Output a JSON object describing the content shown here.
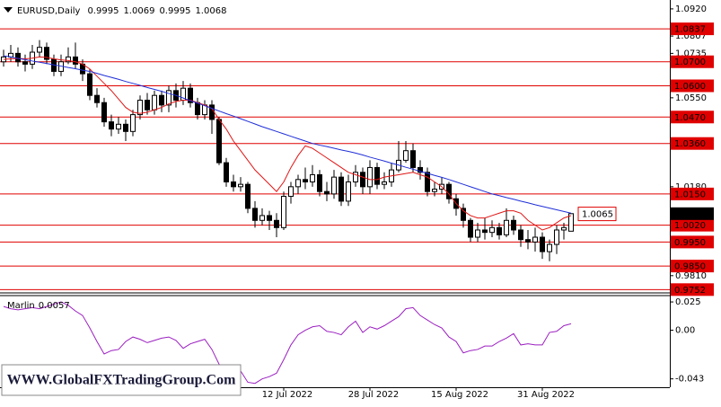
{
  "chart_data": [
    {
      "type": "candlestick",
      "title": "EURUSD,Daily",
      "categories": [
        null,
        null,
        null,
        null,
        null,
        null,
        null,
        null,
        null,
        null,
        null,
        null,
        null,
        null,
        null,
        null,
        null,
        null,
        null,
        null,
        null,
        null,
        null,
        null,
        null,
        null,
        null,
        null,
        null,
        null,
        null,
        null,
        null,
        null,
        null,
        null,
        null,
        null,
        null,
        "12 Jul 2022",
        null,
        null,
        null,
        null,
        null,
        null,
        null,
        null,
        null,
        null,
        null,
        "28 Jul 2022",
        null,
        null,
        null,
        null,
        null,
        null,
        null,
        null,
        null,
        null,
        null,
        "15 Aug 2022",
        null,
        null,
        null,
        null,
        null,
        null,
        null,
        null,
        null,
        null,
        null,
        "31 Aug 2022",
        null,
        null,
        null,
        null
      ],
      "open": [
        1.07,
        1.072,
        1.0735,
        1.07,
        1.069,
        1.074,
        1.076,
        1.071,
        1.066,
        1.07,
        1.072,
        1.069,
        1.065,
        1.056,
        1.053,
        1.045,
        1.042,
        1.044,
        1.041,
        1.048,
        1.054,
        1.05,
        1.056,
        1.052,
        1.058,
        1.054,
        1.059,
        1.053,
        1.048,
        1.052,
        1.046,
        1.028,
        1.02,
        1.018,
        1.019,
        1.009,
        1.004,
        1.006,
        1.004,
        1.001,
        1.014,
        1.018,
        1.021,
        1.02,
        1.023,
        1.016,
        1.015,
        1.022,
        1.012,
        1.02,
        1.024,
        1.018,
        1.026,
        1.019,
        1.02,
        1.025,
        1.029,
        1.033,
        1.026,
        1.024,
        1.016,
        1.017,
        1.019,
        1.013,
        1.009,
        1.004,
        0.997,
        1.0,
        0.999,
        1.001,
        0.998,
        1.004,
        1.0,
        0.996,
        0.995,
        0.997,
        0.991,
        0.994,
        1.0,
        0.9995
      ],
      "high": [
        1.075,
        1.077,
        1.076,
        1.073,
        1.077,
        1.079,
        1.078,
        1.073,
        1.073,
        1.076,
        1.078,
        1.071,
        1.067,
        1.059,
        1.055,
        1.048,
        1.047,
        1.046,
        1.05,
        1.056,
        1.057,
        1.058,
        1.058,
        1.06,
        1.061,
        1.062,
        1.061,
        1.055,
        1.054,
        1.054,
        1.047,
        1.03,
        1.023,
        1.022,
        1.02,
        1.012,
        1.009,
        1.008,
        1.007,
        1.016,
        1.02,
        1.023,
        1.026,
        1.027,
        1.025,
        1.02,
        1.025,
        1.024,
        1.023,
        1.027,
        1.026,
        1.029,
        1.028,
        1.024,
        1.028,
        1.037,
        1.037,
        1.036,
        1.029,
        1.026,
        1.02,
        1.022,
        1.02,
        1.015,
        1.011,
        1.005,
        1.003,
        1.005,
        1.004,
        1.003,
        1.009,
        1.006,
        1.002,
        1.0,
        1.001,
        0.999,
        0.996,
        1.002,
        1.003,
        1.0069
      ],
      "low": [
        1.068,
        1.07,
        1.068,
        1.066,
        1.067,
        1.072,
        1.069,
        1.064,
        1.064,
        1.069,
        1.067,
        1.062,
        1.054,
        1.051,
        1.043,
        1.039,
        1.04,
        1.037,
        1.039,
        1.046,
        1.048,
        1.048,
        1.049,
        1.049,
        1.051,
        1.052,
        1.051,
        1.046,
        1.046,
        1.04,
        1.027,
        1.018,
        1.016,
        1.016,
        1.007,
        1.001,
        1.002,
        1.0,
        0.997,
        1.0,
        1.011,
        1.015,
        1.017,
        1.018,
        1.014,
        1.012,
        1.013,
        1.01,
        1.01,
        1.018,
        1.015,
        1.015,
        1.017,
        1.017,
        1.018,
        1.024,
        1.028,
        1.024,
        1.021,
        1.014,
        1.014,
        1.015,
        1.011,
        1.006,
        1.001,
        0.995,
        0.995,
        0.996,
        0.997,
        0.996,
        0.997,
        0.998,
        0.993,
        0.992,
        0.991,
        0.988,
        0.987,
        0.99,
        0.996,
        0.9995
      ],
      "close": [
        1.072,
        1.0735,
        1.07,
        1.069,
        1.074,
        1.076,
        1.071,
        1.066,
        1.07,
        1.072,
        1.069,
        1.065,
        1.056,
        1.053,
        1.045,
        1.042,
        1.044,
        1.041,
        1.048,
        1.054,
        1.05,
        1.056,
        1.052,
        1.058,
        1.054,
        1.059,
        1.053,
        1.048,
        1.052,
        1.046,
        1.028,
        1.02,
        1.018,
        1.019,
        1.009,
        1.004,
        1.006,
        1.004,
        1.001,
        1.014,
        1.018,
        1.021,
        1.02,
        1.023,
        1.016,
        1.015,
        1.022,
        1.012,
        1.02,
        1.024,
        1.018,
        1.026,
        1.019,
        1.02,
        1.025,
        1.029,
        1.033,
        1.026,
        1.024,
        1.016,
        1.017,
        1.019,
        1.013,
        1.009,
        1.004,
        0.997,
        1.0,
        0.999,
        1.001,
        0.998,
        1.004,
        1.0,
        0.996,
        0.995,
        0.997,
        0.991,
        0.994,
        1.0,
        1.001,
        1.0068
      ],
      "series": [
        {
          "color": "#e01515",
          "values": [
            1.071,
            1.0712,
            1.0714,
            1.0712,
            1.0715,
            1.072,
            1.0718,
            1.0712,
            1.0708,
            1.0705,
            1.07,
            1.069,
            1.067,
            1.064,
            1.061,
            1.058,
            1.0545,
            1.051,
            1.049,
            1.0485,
            1.049,
            1.05,
            1.051,
            1.0525,
            1.0535,
            1.054,
            1.054,
            1.053,
            1.052,
            1.0505,
            1.046,
            1.042,
            1.037,
            1.033,
            1.029,
            1.025,
            1.022,
            1.019,
            1.016,
            1.02,
            1.026,
            1.031,
            1.035,
            1.034,
            1.032,
            1.03,
            1.028,
            1.026,
            1.024,
            1.023,
            1.022,
            1.021,
            1.021,
            1.022,
            1.0225,
            1.023,
            1.0235,
            1.024,
            1.023,
            1.022,
            1.02,
            1.018,
            1.015,
            1.011,
            1.008,
            1.006,
            1.005,
            1.005,
            1.006,
            1.007,
            1.008,
            1.008,
            1.007,
            1.004,
            1.002,
            1.0,
            1.001,
            1.003,
            1.005,
            1.006
          ]
        },
        {
          "color": "#1f2fd8",
          "values": [
            1.0725,
            1.072,
            1.0714,
            1.0709,
            1.0703,
            1.0698,
            1.0693,
            1.0687,
            1.0682,
            1.0676,
            1.0671,
            1.0665,
            1.066,
            1.0652,
            1.0643,
            1.0635,
            1.0627,
            1.0618,
            1.061,
            1.0602,
            1.0593,
            1.0585,
            1.0577,
            1.0568,
            1.056,
            1.0549,
            1.0538,
            1.0528,
            1.0517,
            1.0506,
            1.0495,
            1.0484,
            1.0474,
            1.0463,
            1.0452,
            1.0441,
            1.043,
            1.042,
            1.041,
            1.04,
            1.039,
            1.038,
            1.037,
            1.036,
            1.0353,
            1.0347,
            1.034,
            1.0333,
            1.0327,
            1.032,
            1.0312,
            1.0303,
            1.0295,
            1.0287,
            1.0278,
            1.027,
            1.0261,
            1.0253,
            1.0244,
            1.0236,
            1.0227,
            1.0219,
            1.021,
            1.02,
            1.019,
            1.018,
            1.017,
            1.016,
            1.015,
            1.0143,
            1.0135,
            1.0128,
            1.012,
            1.0113,
            1.0105,
            1.0098,
            1.0091,
            1.0084,
            1.0077,
            1.007
          ]
        }
      ],
      "ylim": [
        0.9742,
        1.0957
      ],
      "yticks": [
        {
          "value": 1.092,
          "label": "1.0920"
        },
        1.0807,
        1.0735,
        {
          "value": 1.055,
          "label": "1.0550"
        },
        {
          "value": 1.018,
          "label": "1.0180"
        },
        {
          "value": 0.981,
          "label": "0.9810"
        }
      ],
      "levels": [
        1.0837,
        {
          "value": 1.07,
          "label": "1.0700"
        },
        {
          "value": 1.06,
          "label": "1.0600"
        },
        {
          "value": 1.047,
          "label": "1.0470"
        },
        {
          "value": 1.036,
          "label": "1.0360"
        },
        {
          "value": 1.015,
          "label": "1.0150"
        },
        {
          "value": 1.002,
          "label": "1.0020"
        },
        {
          "value": 0.995,
          "label": "0.9950"
        },
        {
          "value": 0.985,
          "label": "0.9850"
        },
        0.9752
      ],
      "level_color": "#e00000",
      "price_label": 1.0065,
      "watermark": "WWW.GlobalFXTradingGroup.Com"
    },
    {
      "type": "line",
      "title": "Marlin",
      "color": "#9b1fc0",
      "values": [
        0.021,
        0.019,
        0.018,
        0.019,
        0.02,
        0.019,
        0.021,
        0.023,
        0.025,
        0.022,
        0.017,
        0.013,
        0.002,
        -0.01,
        -0.021,
        -0.018,
        -0.017,
        -0.01,
        -0.006,
        -0.008,
        -0.011,
        -0.009,
        -0.007,
        -0.006,
        -0.009,
        -0.016,
        -0.012,
        -0.01,
        -0.008,
        -0.017,
        -0.03,
        -0.039,
        -0.037,
        -0.036,
        -0.046,
        -0.047,
        -0.043,
        -0.041,
        -0.038,
        -0.026,
        -0.013,
        -0.004,
        0.0,
        0.003,
        0.004,
        -0.001,
        -0.002,
        -0.004,
        0.003,
        0.008,
        -0.002,
        0.003,
        0.001,
        0.004,
        0.008,
        0.012,
        0.019,
        0.02,
        0.013,
        0.009,
        0.005,
        0.002,
        -0.006,
        -0.01,
        -0.02,
        -0.018,
        -0.017,
        -0.014,
        -0.014,
        -0.01,
        -0.007,
        -0.003,
        -0.013,
        -0.012,
        -0.013,
        -0.013,
        -0.002,
        -0.001,
        0.004,
        0.0057
      ],
      "ylim": [
        -0.0504,
        0.0322
      ],
      "yticks": [
        0.025,
        {
          "value": 0,
          "label": "0.00"
        },
        -0.043
      ]
    }
  ]
}
